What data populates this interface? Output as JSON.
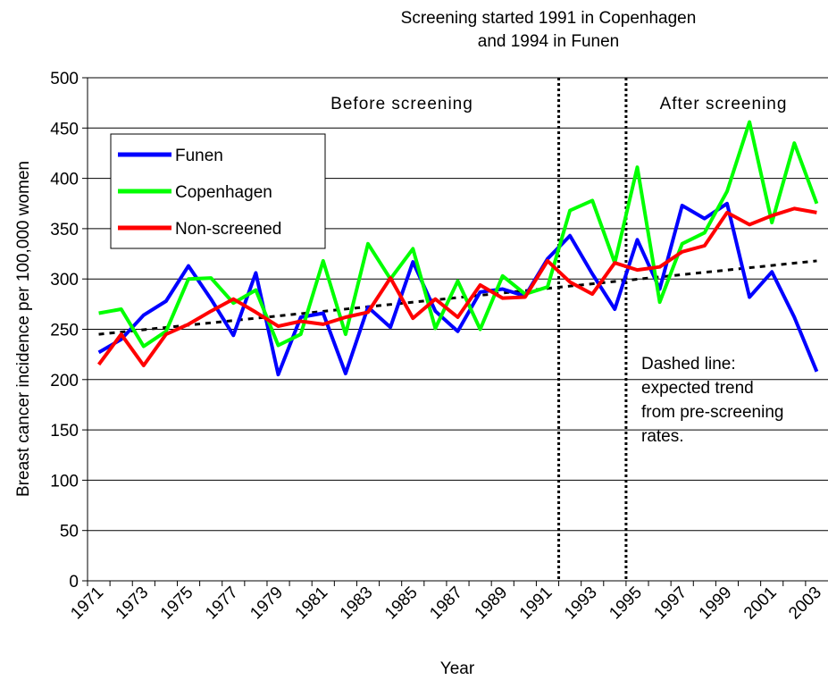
{
  "chart_data": {
    "type": "line",
    "title_lines": [
      "Screening started 1991 in Copenhagen",
      "and 1994 in Funen"
    ],
    "x_label": "Year",
    "y_label": "Breast cancer incidence per 100,000 women",
    "categories": [
      1971,
      null,
      1973,
      null,
      1975,
      null,
      1977,
      null,
      1979,
      null,
      1981,
      null,
      1983,
      null,
      1985,
      null,
      1987,
      null,
      1989,
      null,
      1991,
      null,
      1993,
      null,
      1995,
      null,
      1997,
      null,
      1999,
      null,
      2001,
      null,
      2003
    ],
    "series": [
      {
        "name": "Funen",
        "color": "#0000ff",
        "values": [
          227,
          240,
          264,
          278,
          313,
          280,
          244,
          306,
          205,
          262,
          266,
          206,
          272,
          252,
          317,
          268,
          248,
          287,
          290,
          283,
          320,
          343,
          305,
          270,
          339,
          290,
          373,
          360,
          375,
          282,
          307,
          262,
          208
        ]
      },
      {
        "name": "Copenhagen",
        "color": "#00ff00",
        "values": [
          266,
          270,
          233,
          248,
          300,
          301,
          276,
          289,
          234,
          245,
          318,
          245,
          335,
          300,
          330,
          251,
          298,
          250,
          303,
          285,
          292,
          368,
          378,
          316,
          411,
          277,
          335,
          346,
          387,
          456,
          356,
          435,
          375
        ]
      },
      {
        "name": "Non-screened",
        "color": "#ff0000",
        "values": [
          215,
          245,
          214,
          245,
          255,
          268,
          280,
          267,
          253,
          258,
          255,
          262,
          267,
          301,
          261,
          280,
          262,
          294,
          281,
          282,
          318,
          297,
          285,
          316,
          309,
          312,
          327,
          333,
          366,
          354,
          363,
          370,
          366
        ]
      }
    ],
    "trend_line": {
      "color": "#000000",
      "start": 245,
      "end": 318
    },
    "screening_years": [
      1991,
      1994
    ],
    "annotations": {
      "before": "Before screening",
      "after": "After screening",
      "dashed_note": [
        "Dashed line:",
        "expected trend",
        "from pre-screening",
        "rates."
      ]
    },
    "ylim": [
      0,
      500
    ],
    "yticks": [
      0,
      50,
      100,
      150,
      200,
      250,
      300,
      350,
      400,
      450,
      500
    ],
    "grid": true,
    "legend": "upper left"
  }
}
